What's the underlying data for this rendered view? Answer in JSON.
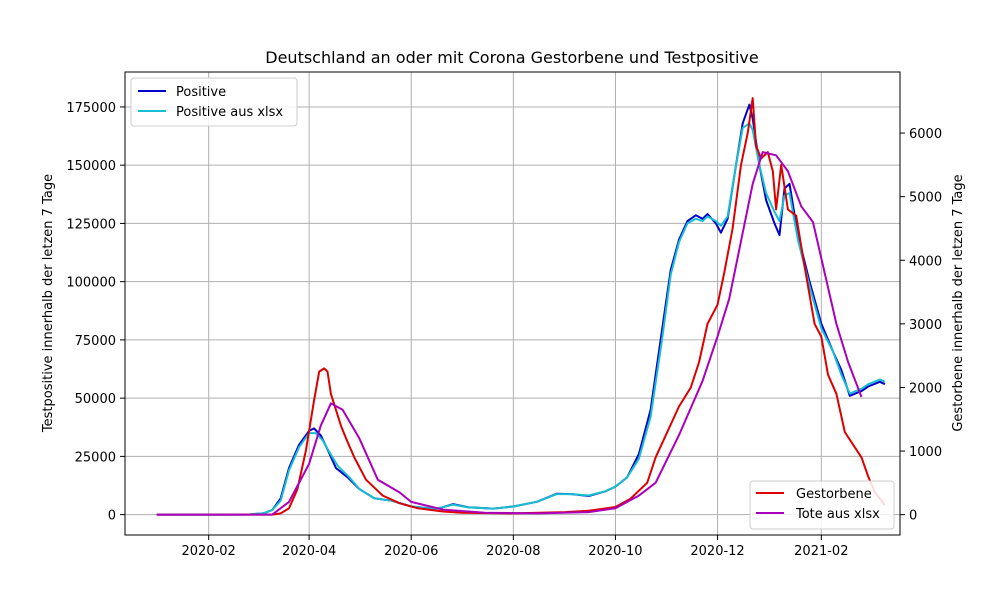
{
  "chart_data": {
    "type": "line",
    "title": "Deutschland an oder mit Corona Gestorbene und Testpositive",
    "ylabel_left": "Testpositive innerhalb der letzen 7 Tage",
    "ylabel_right": "Gestorbene innerhalb der letzen 7 Tage",
    "xlabel": "",
    "x_tick_labels": [
      "2020-02",
      "2020-04",
      "2020-06",
      "2020-08",
      "2020-10",
      "2020-12",
      "2021-02"
    ],
    "x_ticks": [
      "2020-02-01",
      "2020-04-01",
      "2020-06-01",
      "2020-08-01",
      "2020-10-01",
      "2020-12-01",
      "2021-02-01"
    ],
    "xlim": [
      "2019-12-13",
      "2021-03-20"
    ],
    "ylim_left": [
      -8750,
      190000
    ],
    "ylim_right": [
      -320,
      6960
    ],
    "y_ticks_left": [
      0,
      25000,
      50000,
      75000,
      100000,
      125000,
      150000,
      175000
    ],
    "y_tick_labels_left": [
      "0",
      "25000",
      "50000",
      "75000",
      "100000",
      "125000",
      "150000",
      "175000"
    ],
    "y_ticks_right": [
      0,
      1000,
      2000,
      3000,
      4000,
      5000,
      6000
    ],
    "y_tick_labels_right": [
      "0",
      "1000",
      "2000",
      "3000",
      "4000",
      "5000",
      "6000"
    ],
    "grid": true,
    "legend_left": {
      "placement": "top-left",
      "entries": [
        "Positive",
        "Positive aus xlsx"
      ]
    },
    "legend_right": {
      "placement": "bottom-right",
      "entries": [
        "Gestorbene",
        "Tote aus xlsx"
      ]
    },
    "series": [
      {
        "name": "Positive",
        "axis": "left",
        "color": "#0000cc",
        "points": [
          [
            "2020-01-01",
            0
          ],
          [
            "2020-02-15",
            0
          ],
          [
            "2020-02-25",
            50
          ],
          [
            "2020-03-05",
            600
          ],
          [
            "2020-03-10",
            2000
          ],
          [
            "2020-03-15",
            7000
          ],
          [
            "2020-03-20",
            20000
          ],
          [
            "2020-03-26",
            30000
          ],
          [
            "2020-04-01",
            36000
          ],
          [
            "2020-04-04",
            37000
          ],
          [
            "2020-04-08",
            34000
          ],
          [
            "2020-04-12",
            28000
          ],
          [
            "2020-04-17",
            20000
          ],
          [
            "2020-04-24",
            16000
          ],
          [
            "2020-05-01",
            11000
          ],
          [
            "2020-05-10",
            7000
          ],
          [
            "2020-05-20",
            6000
          ],
          [
            "2020-06-01",
            3500
          ],
          [
            "2020-06-15",
            2500
          ],
          [
            "2020-06-20",
            3200
          ],
          [
            "2020-06-26",
            4500
          ],
          [
            "2020-07-05",
            3200
          ],
          [
            "2020-07-20",
            2600
          ],
          [
            "2020-08-01",
            3500
          ],
          [
            "2020-08-15",
            5500
          ],
          [
            "2020-08-27",
            9000
          ],
          [
            "2020-09-05",
            8800
          ],
          [
            "2020-09-15",
            8000
          ],
          [
            "2020-09-25",
            10000
          ],
          [
            "2020-10-01",
            12000
          ],
          [
            "2020-10-08",
            16000
          ],
          [
            "2020-10-15",
            26000
          ],
          [
            "2020-10-22",
            45000
          ],
          [
            "2020-10-29",
            80000
          ],
          [
            "2020-11-03",
            105000
          ],
          [
            "2020-11-08",
            118000
          ],
          [
            "2020-11-13",
            126000
          ],
          [
            "2020-11-18",
            128500
          ],
          [
            "2020-11-22",
            127000
          ],
          [
            "2020-11-25",
            129000
          ],
          [
            "2020-11-30",
            125000
          ],
          [
            "2020-12-03",
            121000
          ],
          [
            "2020-12-07",
            127000
          ],
          [
            "2020-12-12",
            150000
          ],
          [
            "2020-12-16",
            168000
          ],
          [
            "2020-12-20",
            176000
          ],
          [
            "2020-12-22",
            170000
          ],
          [
            "2020-12-26",
            150000
          ],
          [
            "2020-12-30",
            135000
          ],
          [
            "2021-01-04",
            125000
          ],
          [
            "2021-01-07",
            120000
          ],
          [
            "2021-01-10",
            140000
          ],
          [
            "2021-01-13",
            142000
          ],
          [
            "2021-01-18",
            120000
          ],
          [
            "2021-01-25",
            100000
          ],
          [
            "2021-02-01",
            82000
          ],
          [
            "2021-02-08",
            70000
          ],
          [
            "2021-02-13",
            62000
          ],
          [
            "2021-02-18",
            51000
          ],
          [
            "2021-02-25",
            53000
          ],
          [
            "2021-03-01",
            55000
          ],
          [
            "2021-03-08",
            57000
          ],
          [
            "2021-03-11",
            56000
          ]
        ]
      },
      {
        "name": "Positive aus xlsx",
        "axis": "left",
        "color": "#17becf",
        "points": [
          [
            "2020-01-01",
            0
          ],
          [
            "2020-02-15",
            0
          ],
          [
            "2020-02-25",
            50
          ],
          [
            "2020-03-05",
            600
          ],
          [
            "2020-03-10",
            2000
          ],
          [
            "2020-03-15",
            6000
          ],
          [
            "2020-03-20",
            19000
          ],
          [
            "2020-03-26",
            29000
          ],
          [
            "2020-04-01",
            35000
          ],
          [
            "2020-04-05",
            35000
          ],
          [
            "2020-04-09",
            32000
          ],
          [
            "2020-04-13",
            27000
          ],
          [
            "2020-04-18",
            21000
          ],
          [
            "2020-04-25",
            16000
          ],
          [
            "2020-05-01",
            11000
          ],
          [
            "2020-05-10",
            7000
          ],
          [
            "2020-05-20",
            6000
          ],
          [
            "2020-06-01",
            3500
          ],
          [
            "2020-06-15",
            2500
          ],
          [
            "2020-06-20",
            3200
          ],
          [
            "2020-06-26",
            4300
          ],
          [
            "2020-07-05",
            3100
          ],
          [
            "2020-07-20",
            2600
          ],
          [
            "2020-08-01",
            3500
          ],
          [
            "2020-08-15",
            5500
          ],
          [
            "2020-08-27",
            8800
          ],
          [
            "2020-09-05",
            8800
          ],
          [
            "2020-09-15",
            8200
          ],
          [
            "2020-09-25",
            10000
          ],
          [
            "2020-10-01",
            12000
          ],
          [
            "2020-10-08",
            16000
          ],
          [
            "2020-10-15",
            24000
          ],
          [
            "2020-10-22",
            42000
          ],
          [
            "2020-10-29",
            76000
          ],
          [
            "2020-11-03",
            103000
          ],
          [
            "2020-11-08",
            117000
          ],
          [
            "2020-11-13",
            125000
          ],
          [
            "2020-11-18",
            127000
          ],
          [
            "2020-11-22",
            126000
          ],
          [
            "2020-11-25",
            128000
          ],
          [
            "2020-11-30",
            126000
          ],
          [
            "2020-12-03",
            124000
          ],
          [
            "2020-12-07",
            128000
          ],
          [
            "2020-12-12",
            150000
          ],
          [
            "2020-12-16",
            166000
          ],
          [
            "2020-12-20",
            168000
          ],
          [
            "2020-12-22",
            165000
          ],
          [
            "2020-12-26",
            150000
          ],
          [
            "2020-12-30",
            138000
          ],
          [
            "2021-01-04",
            130000
          ],
          [
            "2021-01-07",
            126000
          ],
          [
            "2021-01-10",
            137000
          ],
          [
            "2021-01-13",
            138000
          ],
          [
            "2021-01-18",
            118000
          ],
          [
            "2021-01-25",
            98000
          ],
          [
            "2021-02-01",
            80000
          ],
          [
            "2021-02-08",
            70000
          ],
          [
            "2021-02-13",
            60000
          ],
          [
            "2021-02-18",
            52000
          ],
          [
            "2021-02-25",
            54000
          ],
          [
            "2021-03-01",
            56000
          ],
          [
            "2021-03-08",
            58000
          ],
          [
            "2021-03-11",
            57000
          ]
        ]
      },
      {
        "name": "Gestorbene",
        "axis": "right",
        "color": "#dd0000",
        "points": [
          [
            "2020-01-01",
            0
          ],
          [
            "2020-03-10",
            0
          ],
          [
            "2020-03-15",
            20
          ],
          [
            "2020-03-20",
            100
          ],
          [
            "2020-03-25",
            400
          ],
          [
            "2020-03-30",
            1000
          ],
          [
            "2020-04-04",
            1800
          ],
          [
            "2020-04-07",
            2250
          ],
          [
            "2020-04-10",
            2300
          ],
          [
            "2020-04-12",
            2250
          ],
          [
            "2020-04-14",
            1900
          ],
          [
            "2020-04-17",
            1650
          ],
          [
            "2020-04-20",
            1400
          ],
          [
            "2020-04-23",
            1200
          ],
          [
            "2020-04-28",
            900
          ],
          [
            "2020-05-05",
            550
          ],
          [
            "2020-05-15",
            300
          ],
          [
            "2020-05-25",
            180
          ],
          [
            "2020-06-05",
            100
          ],
          [
            "2020-06-20",
            50
          ],
          [
            "2020-07-01",
            30
          ],
          [
            "2020-08-01",
            20
          ],
          [
            "2020-09-01",
            40
          ],
          [
            "2020-09-15",
            60
          ],
          [
            "2020-10-01",
            120
          ],
          [
            "2020-10-10",
            250
          ],
          [
            "2020-10-20",
            500
          ],
          [
            "2020-10-25",
            900
          ],
          [
            "2020-11-01",
            1300
          ],
          [
            "2020-11-08",
            1700
          ],
          [
            "2020-11-15",
            2000
          ],
          [
            "2020-11-20",
            2400
          ],
          [
            "2020-11-25",
            3000
          ],
          [
            "2020-12-01",
            3300
          ],
          [
            "2020-12-05",
            3800
          ],
          [
            "2020-12-10",
            4500
          ],
          [
            "2020-12-15",
            5500
          ],
          [
            "2020-12-19",
            6000
          ],
          [
            "2020-12-22",
            6550
          ],
          [
            "2020-12-24",
            5800
          ],
          [
            "2020-12-27",
            5600
          ],
          [
            "2020-12-31",
            5700
          ],
          [
            "2021-01-03",
            5400
          ],
          [
            "2021-01-05",
            4800
          ],
          [
            "2021-01-08",
            5500
          ],
          [
            "2021-01-12",
            4800
          ],
          [
            "2021-01-17",
            4700
          ],
          [
            "2021-01-22",
            3900
          ],
          [
            "2021-01-28",
            3000
          ],
          [
            "2021-02-01",
            2800
          ],
          [
            "2021-02-05",
            2200
          ],
          [
            "2021-02-10",
            1900
          ],
          [
            "2021-02-15",
            1300
          ],
          [
            "2021-02-20",
            1100
          ],
          [
            "2021-02-25",
            900
          ],
          [
            "2021-03-01",
            600
          ],
          [
            "2021-03-05",
            350
          ],
          [
            "2021-03-11",
            150
          ]
        ]
      },
      {
        "name": "Tote aus xlsx",
        "axis": "right",
        "color": "#aa00bb",
        "points": [
          [
            "2020-01-01",
            0
          ],
          [
            "2020-03-10",
            0
          ],
          [
            "2020-03-20",
            200
          ],
          [
            "2020-04-01",
            800
          ],
          [
            "2020-04-08",
            1400
          ],
          [
            "2020-04-14",
            1750
          ],
          [
            "2020-04-21",
            1650
          ],
          [
            "2020-05-01",
            1200
          ],
          [
            "2020-05-12",
            550
          ],
          [
            "2020-05-25",
            350
          ],
          [
            "2020-06-01",
            200
          ],
          [
            "2020-06-20",
            80
          ],
          [
            "2020-07-15",
            30
          ],
          [
            "2020-08-15",
            20
          ],
          [
            "2020-09-15",
            40
          ],
          [
            "2020-10-01",
            100
          ],
          [
            "2020-10-15",
            300
          ],
          [
            "2020-10-25",
            500
          ],
          [
            "2020-11-08",
            1250
          ],
          [
            "2020-11-22",
            2100
          ],
          [
            "2020-12-01",
            2800
          ],
          [
            "2020-12-08",
            3400
          ],
          [
            "2020-12-15",
            4300
          ],
          [
            "2020-12-22",
            5200
          ],
          [
            "2020-12-28",
            5700
          ],
          [
            "2021-01-05",
            5650
          ],
          [
            "2021-01-12",
            5400
          ],
          [
            "2021-01-20",
            4850
          ],
          [
            "2021-01-27",
            4600
          ],
          [
            "2021-02-03",
            3800
          ],
          [
            "2021-02-10",
            3000
          ],
          [
            "2021-02-17",
            2400
          ],
          [
            "2021-02-25",
            1850
          ]
        ]
      }
    ]
  }
}
